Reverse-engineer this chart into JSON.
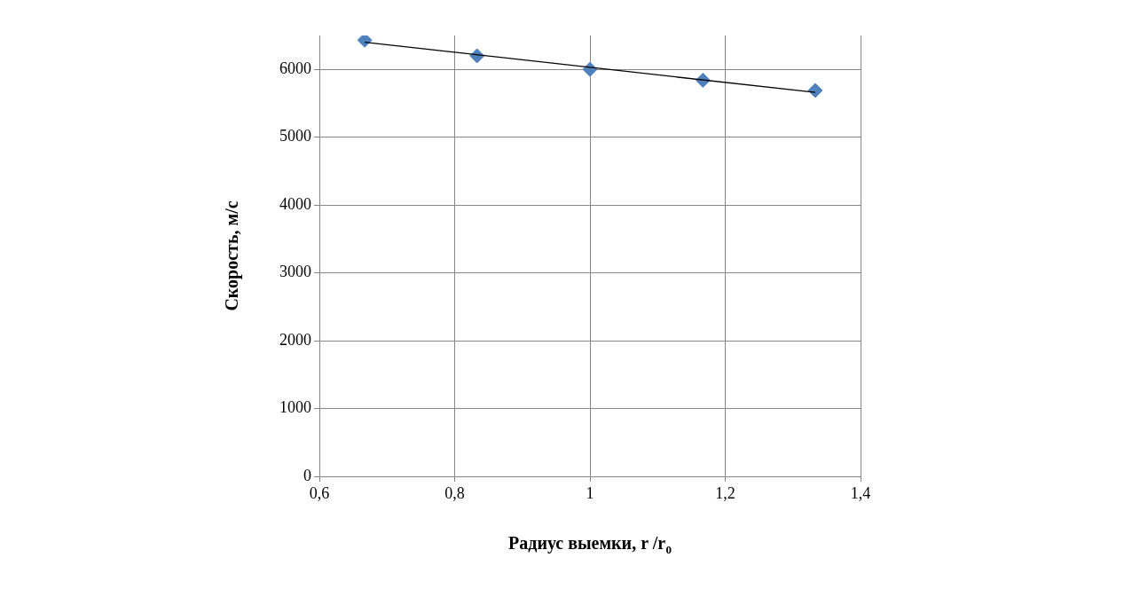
{
  "chart_data": {
    "type": "scatter",
    "xlabel": "Радиус выемки, r /r$_{0}$",
    "ylabel": "Скорость, м/с",
    "series": [
      {
        "type": "scatter",
        "color": "#4f81bd",
        "marker": "diamond",
        "x": [
          0.667,
          0.833,
          1,
          1.167,
          1.333
        ],
        "values": [
          6430,
          6200,
          6000,
          5840,
          5690
        ]
      },
      {
        "type": "line",
        "color": "#000000",
        "marker": "none",
        "x": [
          0.667,
          1.333
        ],
        "values": [
          6400,
          5660
        ]
      }
    ],
    "xlim": [
      0.6,
      1.4
    ],
    "xticks": [
      {
        "value": 0.6,
        "label": "0,6"
      },
      {
        "value": 0.8,
        "label": "0,8"
      },
      {
        "value": 1,
        "label": "1"
      },
      {
        "value": 1.2,
        "label": "1,2"
      },
      {
        "value": 1.4,
        "label": "1,4"
      }
    ],
    "ylim": [
      0,
      6500
    ],
    "yticks": [
      0,
      1000,
      2000,
      3000,
      4000,
      5000,
      6000
    ],
    "grid": true,
    "legend": false
  }
}
